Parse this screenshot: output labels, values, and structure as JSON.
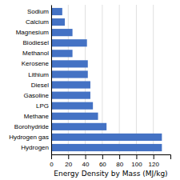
{
  "chart_data": {
    "type": "bar",
    "orientation": "horizontal",
    "categories": [
      "Sodium",
      "Calcium",
      "Magnesium",
      "Biodiesel",
      "Methanol",
      "Kerosene",
      "Lithium",
      "Diesel",
      "Gasoline",
      "LPG",
      "Methane",
      "Borohydride",
      "Hydrogen gas",
      "Hydrogen"
    ],
    "values": [
      13,
      16,
      25,
      42,
      25,
      43,
      43,
      46,
      46,
      49,
      55,
      65,
      130,
      130
    ],
    "color": "#4472C4",
    "xlabel": "Energy Density by Mass (MJ/kg)",
    "xlim": [
      0,
      140
    ],
    "xticks": [
      0,
      20,
      40,
      60,
      80,
      100,
      120
    ],
    "grid": true
  }
}
